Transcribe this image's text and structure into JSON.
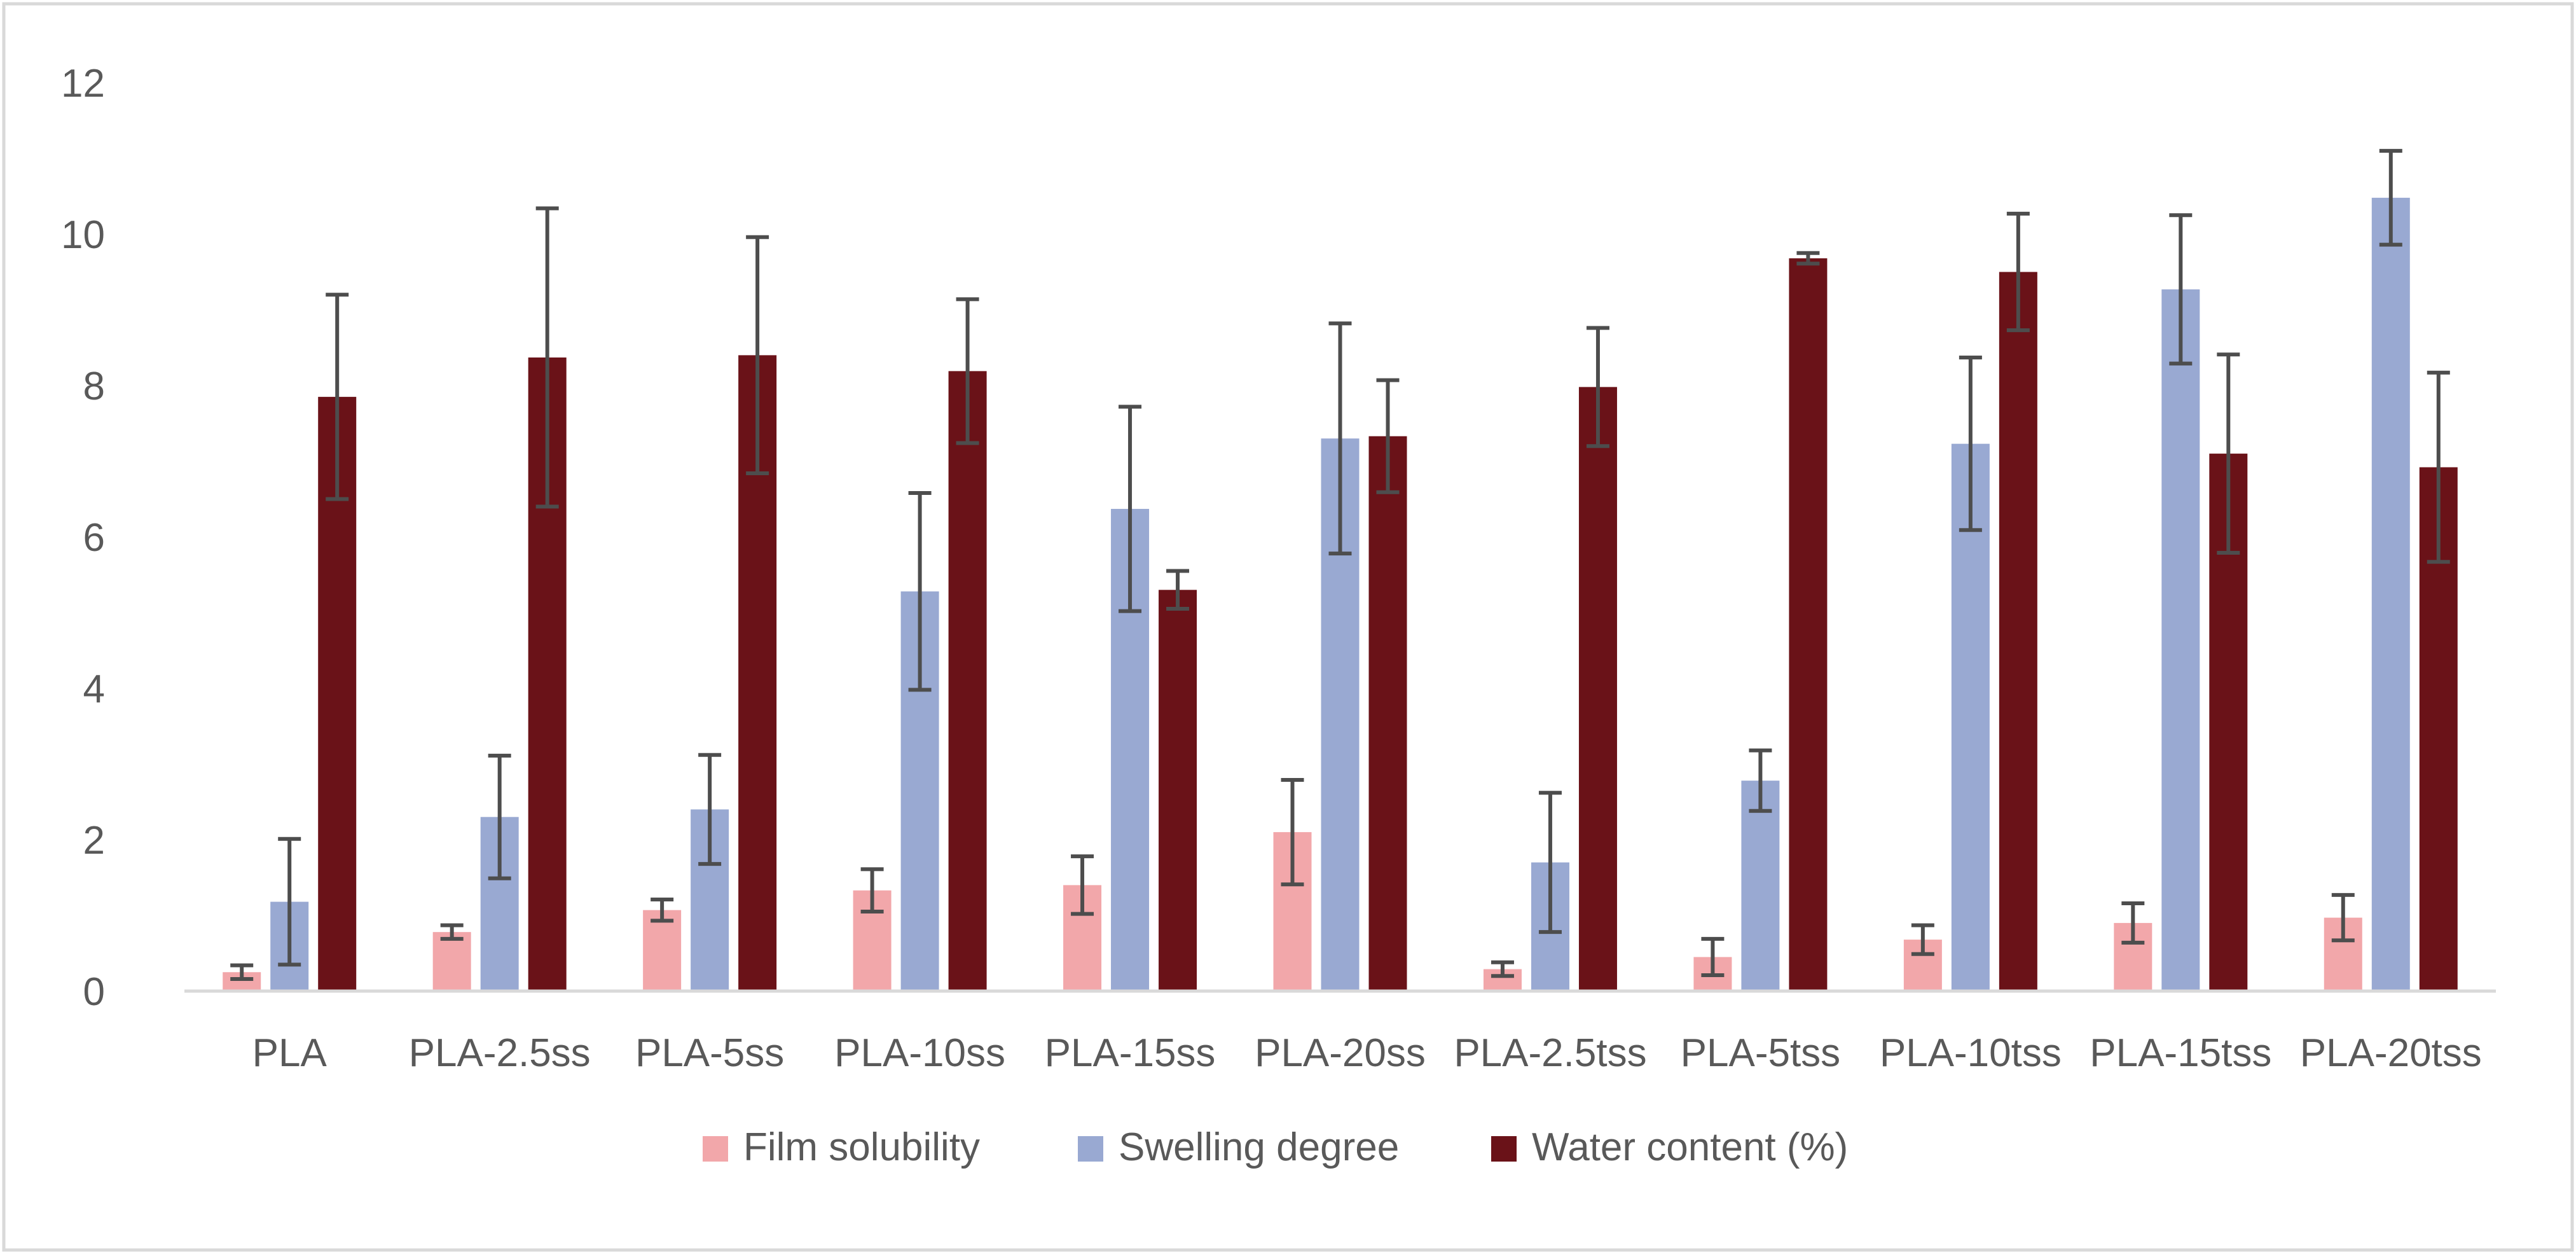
{
  "chart_data": {
    "type": "bar",
    "title": "",
    "xlabel": "",
    "ylabel": "",
    "ylim": [
      0,
      12
    ],
    "yticks": [
      0,
      2,
      4,
      6,
      8,
      10,
      12
    ],
    "grid": false,
    "legend_position": "bottom",
    "categories": [
      "PLA",
      "PLA-2.5ss",
      "PLA-5ss",
      "PLA-10ss",
      "PLA-15ss",
      "PLA-20ss",
      "PLA-2.5tss",
      "PLA-5tss",
      "PLA-10tss",
      "PLA-15tss",
      "PLA-20tss"
    ],
    "series": [
      {
        "name": "Film solubility",
        "color": "#F2A7AA",
        "values": [
          0.25,
          0.78,
          1.07,
          1.33,
          1.4,
          2.1,
          0.29,
          0.45,
          0.68,
          0.9,
          0.97
        ],
        "errors": [
          0.09,
          0.09,
          0.14,
          0.28,
          0.38,
          0.69,
          0.09,
          0.24,
          0.19,
          0.26,
          0.3
        ]
      },
      {
        "name": "Swelling degree",
        "color": "#99A9D2",
        "values": [
          1.18,
          2.3,
          2.4,
          5.28,
          6.37,
          7.3,
          1.7,
          2.78,
          7.23,
          9.27,
          10.48
        ],
        "errors": [
          0.83,
          0.81,
          0.72,
          1.3,
          1.35,
          1.52,
          0.92,
          0.4,
          1.14,
          0.98,
          0.62
        ]
      },
      {
        "name": "Water content (%)",
        "color": "#6A1218",
        "values": [
          7.85,
          8.37,
          8.4,
          8.19,
          5.3,
          7.33,
          7.98,
          9.68,
          9.5,
          7.1,
          6.92
        ],
        "errors": [
          1.35,
          1.97,
          1.56,
          0.95,
          0.25,
          0.74,
          0.78,
          0.07,
          0.77,
          1.31,
          1.25
        ]
      }
    ]
  }
}
